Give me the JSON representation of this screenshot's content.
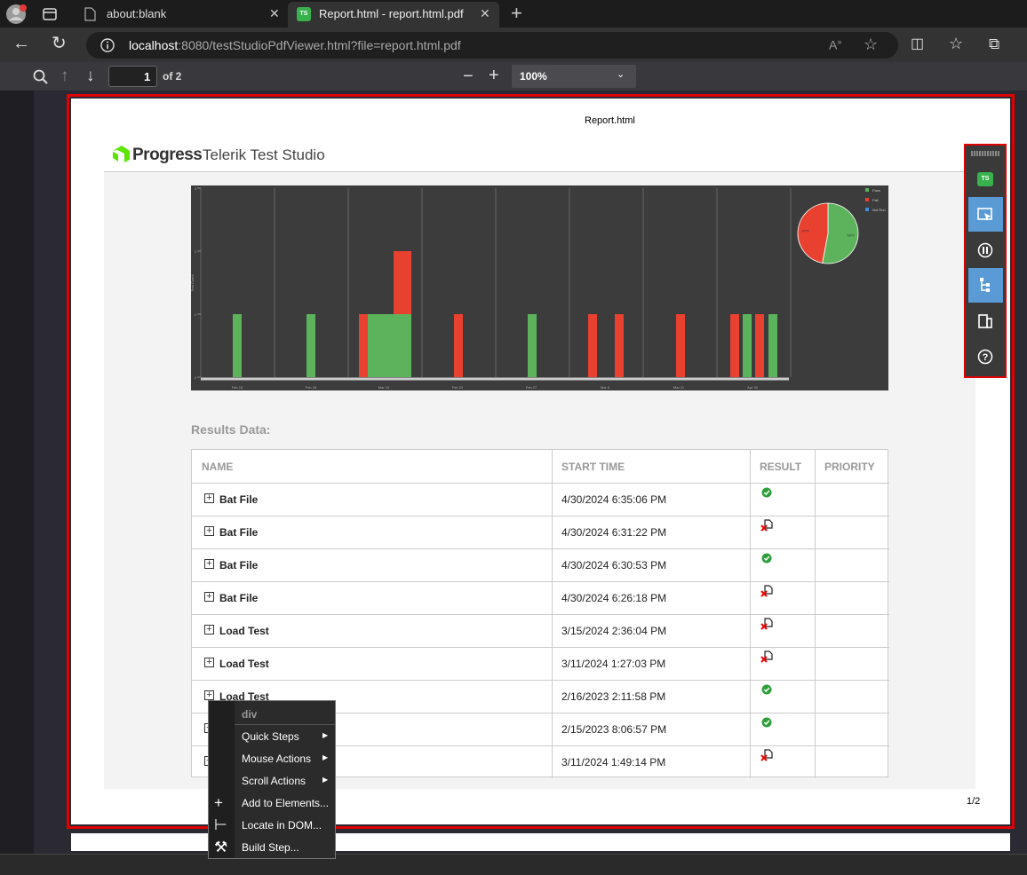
{
  "browser": {
    "tabs": [
      "about:blank",
      "Report.html - report.html.pdf"
    ],
    "url_host": "localhost",
    "url_rest": ":8080/testStudioPdfViewer.html?file=report.html.pdf"
  },
  "pdf_toolbar": {
    "page": "1",
    "page_count": "of 2",
    "zoom": "100%"
  },
  "report": {
    "page_title": "Report.html",
    "logo_brand": "Progress",
    "logo_product": "Telerik Test Studio",
    "section_title": "Results Data:",
    "page_number": "1/2",
    "chart": {
      "type": "bar",
      "stacked": true,
      "y_label": "Test Count",
      "ylim": [
        0,
        3
      ],
      "yticks": [
        0,
        1,
        2,
        3
      ],
      "x_labels": [
        "Feb 15",
        "Feb 16",
        "Mar 10",
        "Feb 22",
        "Feb 27",
        "Mar 6",
        "Mar 11",
        "Apr 30"
      ],
      "series": [
        {
          "name": "Pass",
          "color": "#5cb35c",
          "values": [
            1,
            1,
            0,
            1,
            1,
            1,
            1,
            1,
            0,
            1,
            0,
            0,
            0,
            0,
            1,
            0,
            1
          ]
        },
        {
          "name": "Fail",
          "color": "#e8412f",
          "values": [
            0,
            0,
            1,
            0,
            0,
            0,
            1,
            1,
            1,
            0,
            1,
            1,
            1,
            1,
            0,
            1,
            0
          ]
        },
        {
          "name": "Not Run",
          "color": "#3d8fe0",
          "values": [
            0,
            0,
            0,
            0,
            0,
            0,
            0,
            0,
            0,
            0,
            0,
            0,
            0,
            0,
            0,
            0,
            0
          ]
        }
      ],
      "pie": {
        "values": [
          53,
          47
        ],
        "value_labels": [
          "53%",
          "47%"
        ],
        "colors": [
          "#5cb35c",
          "#e8412f"
        ]
      }
    },
    "table": {
      "headers": [
        "NAME",
        "START TIME",
        "RESULT",
        "PRIORITY"
      ],
      "rows": [
        {
          "name": "Bat File",
          "start_time": "4/30/2024 6:35:06 PM",
          "result": "pass"
        },
        {
          "name": "Bat File",
          "start_time": "4/30/2024 6:31:22 PM",
          "result": "fail"
        },
        {
          "name": "Bat File",
          "start_time": "4/30/2024 6:30:53 PM",
          "result": "pass"
        },
        {
          "name": "Bat File",
          "start_time": "4/30/2024 6:26:18 PM",
          "result": "fail"
        },
        {
          "name": "Load Test",
          "start_time": "3/15/2024 2:36:04 PM",
          "result": "fail"
        },
        {
          "name": "Load Test",
          "start_time": "3/11/2024 1:27:03 PM",
          "result": "fail"
        },
        {
          "name": "Load Test",
          "start_time": "2/16/2023 2:11:58 PM",
          "result": "pass"
        },
        {
          "name": null,
          "start_time": "2/15/2023 8:06:57 PM",
          "result": "pass"
        },
        {
          "name": null,
          "start_time": "3/11/2024 1:49:14 PM",
          "result": "fail"
        }
      ]
    }
  },
  "context_menu": {
    "title": "div",
    "items": [
      {
        "label": "Quick Steps",
        "submenu": true
      },
      {
        "label": "Mouse Actions",
        "submenu": true
      },
      {
        "label": "Scroll Actions",
        "submenu": true
      },
      {
        "label": "Add to Elements...",
        "icon": "plus"
      },
      {
        "label": "Locate in DOM...",
        "icon": "tree"
      },
      {
        "label": "Build Step...",
        "icon": "hammer"
      }
    ]
  }
}
